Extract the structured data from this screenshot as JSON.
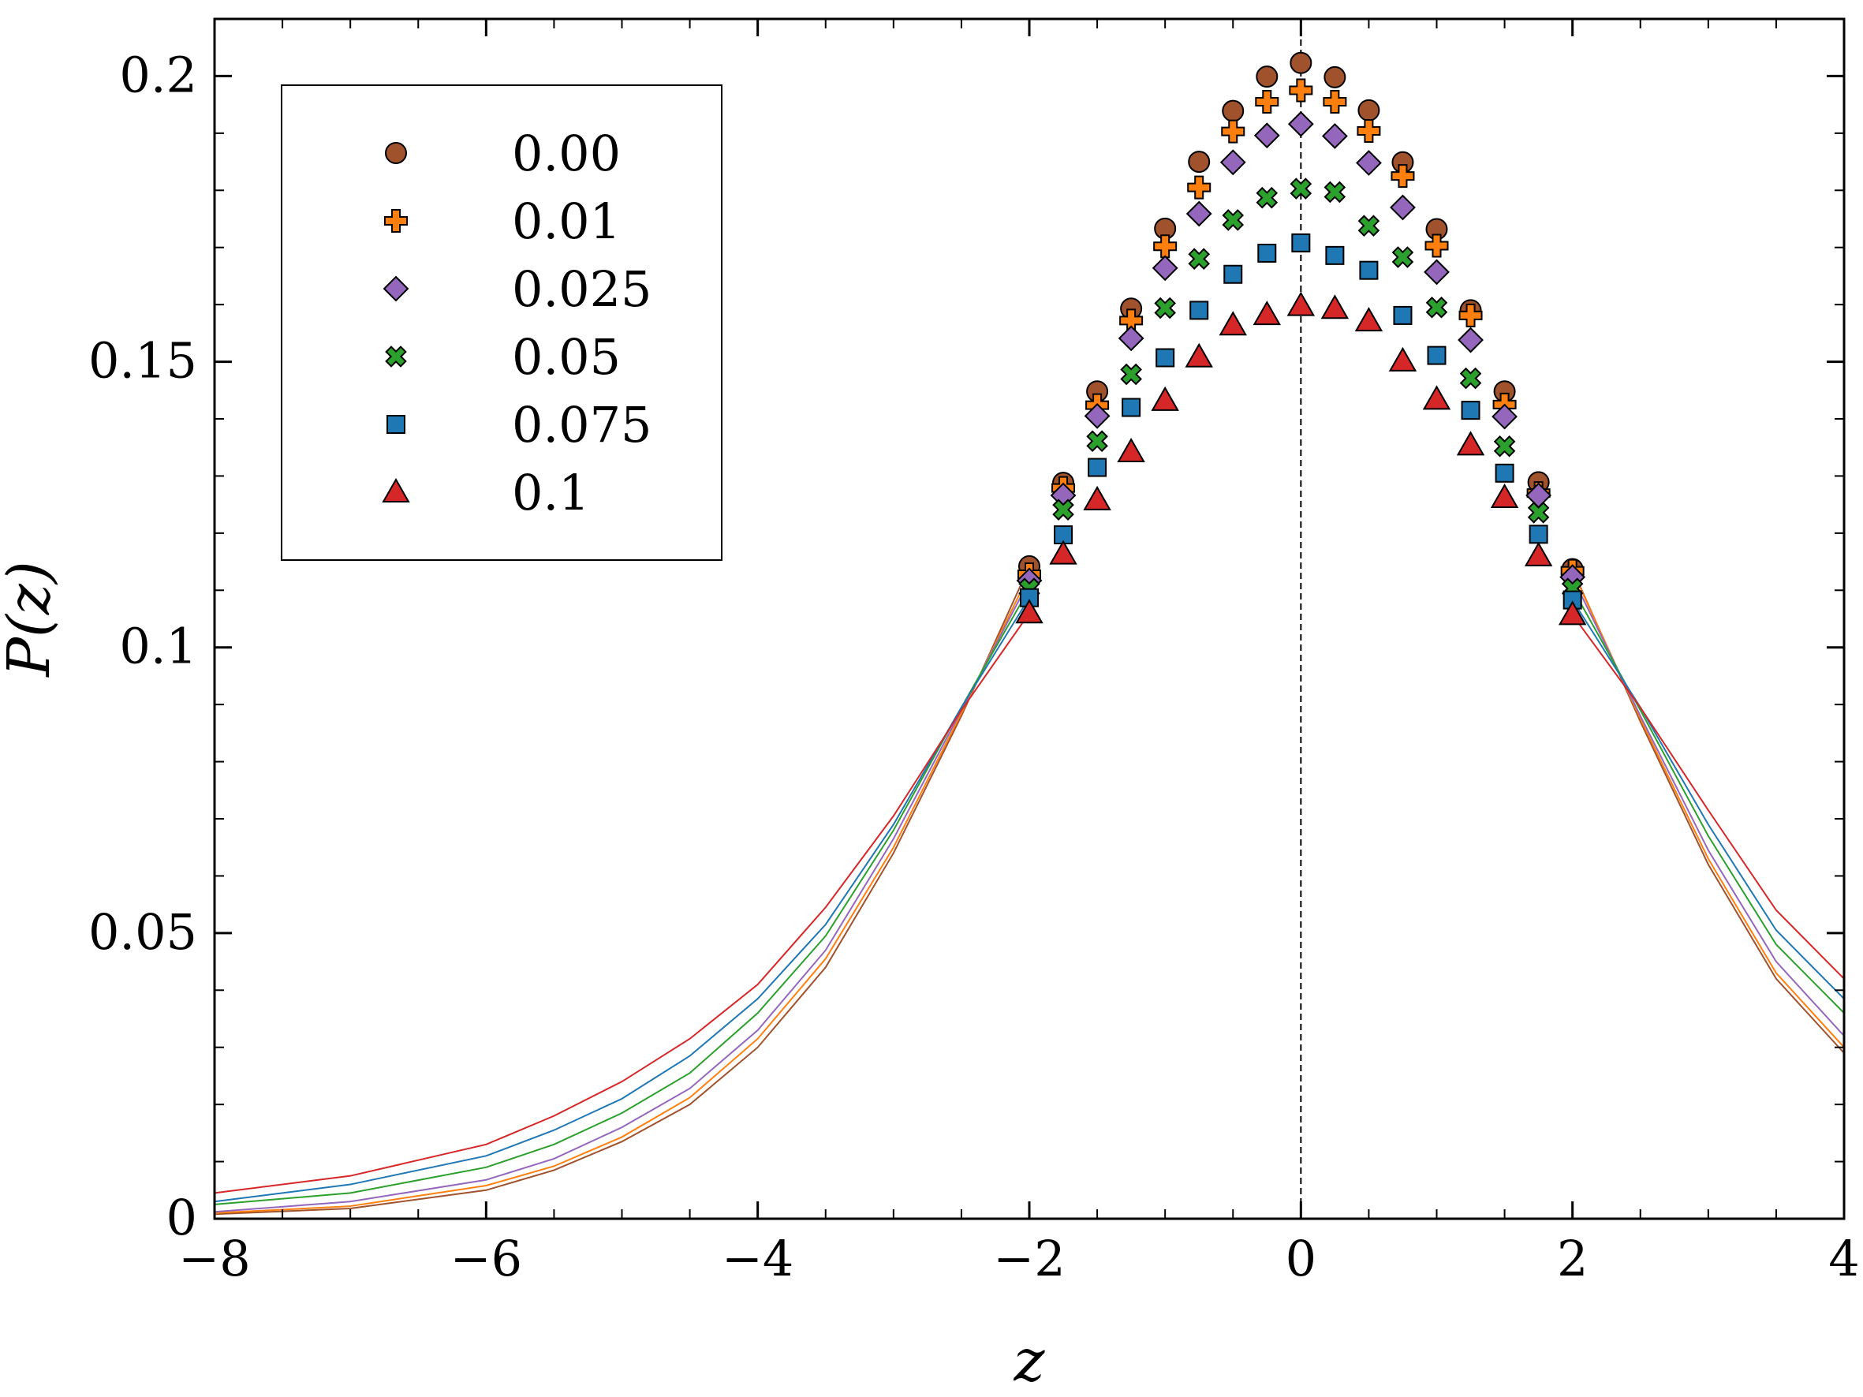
{
  "chart_data": {
    "type": "scatter",
    "xlabel": "z",
    "ylabel": "P(z)",
    "xlim": [
      -8,
      4
    ],
    "ylim": [
      0,
      0.21
    ],
    "xticks": [
      -8,
      -6,
      -4,
      -2,
      0,
      2,
      4
    ],
    "xtick_labels": [
      "−8",
      "−6",
      "−4",
      "−2",
      "0",
      "2",
      "4"
    ],
    "yticks": [
      0,
      0.05,
      0.1,
      0.15,
      0.2
    ],
    "ytick_labels": [
      "0",
      "0.05",
      "0.1",
      "0.15",
      "0.2"
    ],
    "grid": false,
    "legend_position": "top-left",
    "reference_line": {
      "x": 0,
      "style": "dashed"
    },
    "marker_x": [
      -2,
      -1.75,
      -1.5,
      -1.25,
      -1,
      -0.75,
      -0.5,
      -0.25,
      0,
      0.25,
      0.5,
      0.75,
      1,
      1.25,
      1.5,
      1.75,
      2
    ],
    "series": [
      {
        "name": "0.00",
        "color": "#a0522d",
        "marker": "circle",
        "marker_y": [
          0.1142,
          0.1288,
          0.1448,
          0.1593,
          0.1733,
          0.185,
          0.1939,
          0.1999,
          0.2023,
          0.1998,
          0.194,
          0.1849,
          0.1732,
          0.159,
          0.1448,
          0.1289,
          0.1137
        ],
        "curve_left": [
          [
            -8,
            0.0008
          ],
          [
            -7,
            0.0018
          ],
          [
            -6,
            0.005
          ],
          [
            -5.5,
            0.0085
          ],
          [
            -5,
            0.0135
          ],
          [
            -4.5,
            0.02
          ],
          [
            -4,
            0.03
          ],
          [
            -3.5,
            0.044
          ],
          [
            -3,
            0.064
          ],
          [
            -2.5,
            0.088
          ],
          [
            -2,
            0.1142
          ]
        ],
        "curve_right": [
          [
            2,
            0.1137
          ],
          [
            2.5,
            0.087
          ],
          [
            3,
            0.062
          ],
          [
            3.5,
            0.042
          ],
          [
            4,
            0.029
          ]
        ]
      },
      {
        "name": "0.01",
        "color": "#ff7f0e",
        "marker": "plus",
        "marker_y": [
          0.1128,
          0.1279,
          0.1424,
          0.1572,
          0.1702,
          0.1805,
          0.1903,
          0.1955,
          0.1975,
          0.1955,
          0.1904,
          0.1825,
          0.1703,
          0.1581,
          0.1425,
          0.127,
          0.1134
        ],
        "curve_left": [
          [
            -8,
            0.001
          ],
          [
            -7,
            0.0022
          ],
          [
            -6,
            0.0058
          ],
          [
            -5.5,
            0.0092
          ],
          [
            -5,
            0.0143
          ],
          [
            -4.5,
            0.0212
          ],
          [
            -4,
            0.0315
          ],
          [
            -3.5,
            0.0455
          ],
          [
            -3,
            0.065
          ],
          [
            -2.5,
            0.0885
          ],
          [
            -2,
            0.1128
          ]
        ],
        "curve_right": [
          [
            2,
            0.1134
          ],
          [
            2.5,
            0.0875
          ],
          [
            3,
            0.063
          ],
          [
            3.5,
            0.043
          ],
          [
            4,
            0.03
          ]
        ]
      },
      {
        "name": "0.025",
        "color": "#9467bd",
        "marker": "diamond",
        "marker_y": [
          0.1117,
          0.1266,
          0.1405,
          0.1541,
          0.1664,
          0.1759,
          0.1849,
          0.1896,
          0.1916,
          0.1895,
          0.1848,
          0.177,
          0.1657,
          0.1538,
          0.1404,
          0.1266,
          0.1123
        ],
        "curve_left": [
          [
            -8,
            0.0012
          ],
          [
            -7,
            0.003
          ],
          [
            -6,
            0.0068
          ],
          [
            -5.5,
            0.0105
          ],
          [
            -5,
            0.016
          ],
          [
            -4.5,
            0.0228
          ],
          [
            -4,
            0.033
          ],
          [
            -3.5,
            0.047
          ],
          [
            -3,
            0.0665
          ],
          [
            -2.5,
            0.089
          ],
          [
            -2,
            0.1117
          ]
        ],
        "curve_right": [
          [
            2,
            0.1123
          ],
          [
            2.5,
            0.088
          ],
          [
            3,
            0.0645
          ],
          [
            3.5,
            0.045
          ],
          [
            4,
            0.032
          ]
        ]
      },
      {
        "name": "0.05",
        "color": "#2ca02c",
        "marker": "x",
        "marker_y": [
          0.1103,
          0.1241,
          0.1361,
          0.1478,
          0.1594,
          0.168,
          0.1748,
          0.1787,
          0.1803,
          0.1797,
          0.1738,
          0.1683,
          0.1595,
          0.1471,
          0.1352,
          0.1236,
          0.1103
        ],
        "curve_left": [
          [
            -8,
            0.0025
          ],
          [
            -7,
            0.0045
          ],
          [
            -6,
            0.009
          ],
          [
            -5.5,
            0.013
          ],
          [
            -5,
            0.0185
          ],
          [
            -4.5,
            0.0255
          ],
          [
            -4,
            0.036
          ],
          [
            -3.5,
            0.0495
          ],
          [
            -3,
            0.068
          ],
          [
            -2.5,
            0.0895
          ],
          [
            -2,
            0.1103
          ]
        ],
        "curve_right": [
          [
            2,
            0.1103
          ],
          [
            2.5,
            0.089
          ],
          [
            3,
            0.067
          ],
          [
            3.5,
            0.048
          ],
          [
            4,
            0.036
          ]
        ]
      },
      {
        "name": "0.075",
        "color": "#1f77b4",
        "marker": "square",
        "marker_y": [
          0.1087,
          0.1197,
          0.1315,
          0.142,
          0.1507,
          0.159,
          0.1653,
          0.169,
          0.1708,
          0.1686,
          0.166,
          0.1581,
          0.1511,
          0.1415,
          0.1305,
          0.1198,
          0.1083
        ],
        "curve_left": [
          [
            -8,
            0.003
          ],
          [
            -7,
            0.006
          ],
          [
            -6,
            0.011
          ],
          [
            -5.5,
            0.0155
          ],
          [
            -5,
            0.021
          ],
          [
            -4.5,
            0.0285
          ],
          [
            -4,
            0.0385
          ],
          [
            -3.5,
            0.0515
          ],
          [
            -3,
            0.069
          ],
          [
            -2.5,
            0.0895
          ],
          [
            -2,
            0.1087
          ]
        ],
        "curve_right": [
          [
            2,
            0.1083
          ],
          [
            2.5,
            0.0895
          ],
          [
            3,
            0.069
          ],
          [
            3.5,
            0.0505
          ],
          [
            4,
            0.0385
          ]
        ]
      },
      {
        "name": "0.1",
        "color": "#d62728",
        "marker": "triangle",
        "marker_y": [
          0.106,
          0.1163,
          0.1258,
          0.1342,
          0.1432,
          0.1508,
          0.1564,
          0.1582,
          0.1598,
          0.1593,
          0.1571,
          0.1501,
          0.1434,
          0.1354,
          0.1262,
          0.116,
          0.1057
        ],
        "curve_left": [
          [
            -8,
            0.0045
          ],
          [
            -7,
            0.0075
          ],
          [
            -6,
            0.013
          ],
          [
            -5.5,
            0.018
          ],
          [
            -5,
            0.024
          ],
          [
            -4.5,
            0.0315
          ],
          [
            -4,
            0.041
          ],
          [
            -3.5,
            0.0545
          ],
          [
            -3,
            0.0705
          ],
          [
            -2.5,
            0.089
          ],
          [
            -2,
            0.106
          ]
        ],
        "curve_right": [
          [
            2,
            0.1057
          ],
          [
            2.5,
            0.0895
          ],
          [
            3,
            0.0715
          ],
          [
            3.5,
            0.054
          ],
          [
            4,
            0.042
          ]
        ]
      }
    ]
  }
}
